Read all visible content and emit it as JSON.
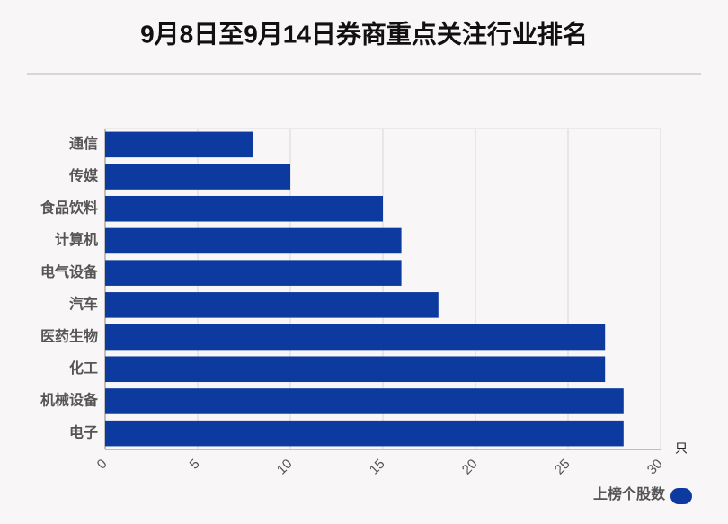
{
  "chart_data": {
    "type": "bar",
    "orientation": "horizontal",
    "title": "9月8日至9月14日券商重点关注行业排名",
    "categories": [
      "通信",
      "传媒",
      "食品饮料",
      "计算机",
      "电气设备",
      "汽车",
      "医药生物",
      "化工",
      "机械设备",
      "电子"
    ],
    "series": [
      {
        "name": "上榜个股数",
        "color": "#0d3a9f",
        "values": [
          8,
          10,
          15,
          16,
          16,
          18,
          27,
          27,
          28,
          28
        ]
      }
    ],
    "x_unit": "只",
    "xlim": [
      0,
      30
    ],
    "xticks": [
      0,
      5,
      10,
      15,
      20,
      25,
      30
    ],
    "grid": true,
    "legend": "bottom-right"
  }
}
